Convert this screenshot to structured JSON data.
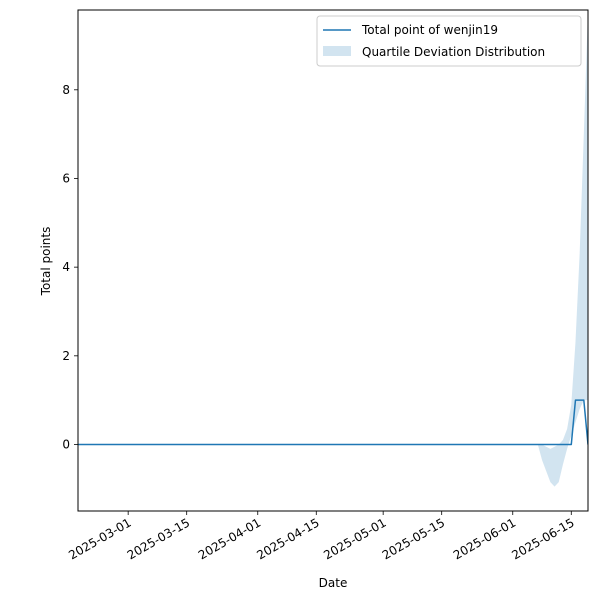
{
  "chart_data": {
    "type": "line",
    "title": "",
    "xlabel": "Date",
    "ylabel": "Total points",
    "x_axis": {
      "scale": "date",
      "range": [
        "2025-02-17",
        "2025-06-19"
      ],
      "ticks": [
        "2025-03-01",
        "2025-03-15",
        "2025-04-01",
        "2025-04-15",
        "2025-05-01",
        "2025-05-15",
        "2025-06-01",
        "2025-06-15"
      ],
      "tick_rotation": 30
    },
    "y_axis": {
      "range": [
        -1.5,
        9.8
      ],
      "ticks": [
        0,
        2,
        4,
        6,
        8
      ]
    },
    "grid": false,
    "legend_placement": "top-right",
    "series": [
      {
        "name": "Total point of wenjin19",
        "kind": "line",
        "color": "#1f77b4",
        "points": [
          {
            "x": "2025-02-17",
            "y": 0
          },
          {
            "x": "2025-06-15",
            "y": 0
          },
          {
            "x": "2025-06-16",
            "y": 1
          },
          {
            "x": "2025-06-18",
            "y": 1
          },
          {
            "x": "2025-06-19",
            "y": 0
          }
        ]
      },
      {
        "name": "Quartile Deviation Distribution",
        "kind": "band",
        "color": "#1f77b4",
        "opacity": 0.2,
        "points": [
          {
            "x": "2025-02-17",
            "lower": 0,
            "upper": 0
          },
          {
            "x": "2025-06-07",
            "lower": 0,
            "upper": 0
          },
          {
            "x": "2025-06-08",
            "lower": -0.35,
            "upper": 0
          },
          {
            "x": "2025-06-09",
            "lower": -0.6,
            "upper": -0.05
          },
          {
            "x": "2025-06-10",
            "lower": -0.85,
            "upper": -0.1
          },
          {
            "x": "2025-06-11",
            "lower": -0.95,
            "upper": -0.05
          },
          {
            "x": "2025-06-12",
            "lower": -0.85,
            "upper": 0
          },
          {
            "x": "2025-06-13",
            "lower": -0.45,
            "upper": 0.1
          },
          {
            "x": "2025-06-14",
            "lower": -0.1,
            "upper": 0.35
          },
          {
            "x": "2025-06-15",
            "lower": 0.2,
            "upper": 0.9
          },
          {
            "x": "2025-06-16",
            "lower": 0.5,
            "upper": 2.3
          },
          {
            "x": "2025-06-17",
            "lower": 0.8,
            "upper": 4.3
          },
          {
            "x": "2025-06-18",
            "lower": 1.0,
            "upper": 7.0
          },
          {
            "x": "2025-06-19",
            "lower": 1.0,
            "upper": 9.8
          }
        ]
      }
    ]
  }
}
